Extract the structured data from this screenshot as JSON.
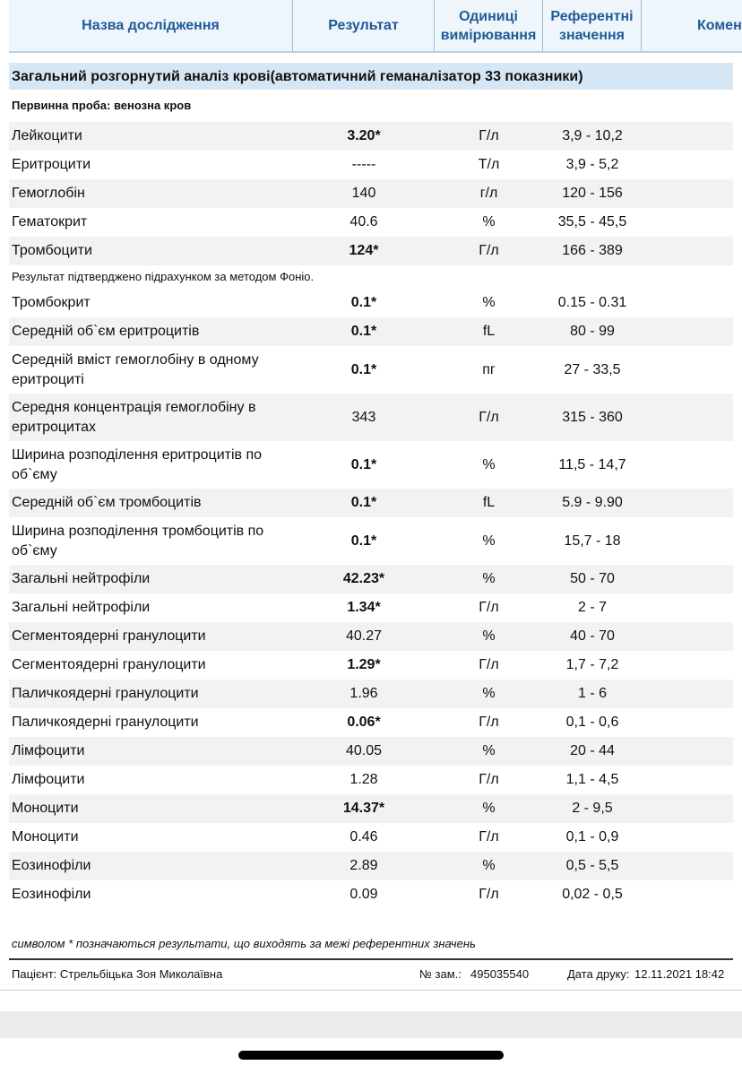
{
  "header": {
    "columns": [
      "Назва дослідження",
      "Результат",
      "Одиниці вимірювання",
      "Референтні значення",
      "Комен"
    ]
  },
  "section": {
    "title": "Загальний розгорнутий аналіз крові(автоматичний геманалізатор 33 показники)",
    "sample": "Первинна проба: венозна кров"
  },
  "table": {
    "rows": [
      {
        "name": "Лейкоцити",
        "result": "3.20*",
        "unit": "Г/л",
        "ref": "3,9 - 10,2"
      },
      {
        "name": "Еритроцити",
        "result": "-----",
        "unit": "Т/л",
        "ref": "3,9 - 5,2"
      },
      {
        "name": "Гемоглобін",
        "result": "140",
        "unit": "г/л",
        "ref": "120 - 156"
      },
      {
        "name": "Гематокрит",
        "result": "40.6",
        "unit": "%",
        "ref": "35,5 - 45,5"
      },
      {
        "name": "Тромбоцити",
        "result": "124*",
        "unit": "Г/л",
        "ref": "166 - 389"
      },
      {
        "note": "Результат підтверджено підрахунком за методом Фоніо."
      },
      {
        "name": "Тромбокрит",
        "result": "0.1*",
        "unit": "%",
        "ref": "0.15 - 0.31"
      },
      {
        "name": "Середній об`єм еритроцитів",
        "result": "0.1*",
        "unit": "fL",
        "ref": "80 - 99"
      },
      {
        "name": "Середній вміст гемоглобіну в одному еритроциті",
        "result": "0.1*",
        "unit": "пг",
        "ref": "27 - 33,5"
      },
      {
        "name": "Середня концентрація гемоглобіну в еритроцитах",
        "result": "343",
        "unit": "Г/л",
        "ref": "315 - 360"
      },
      {
        "name": "Ширина розподілення еритроцитів по об`єму",
        "result": "0.1*",
        "unit": "%",
        "ref": "11,5 - 14,7"
      },
      {
        "name": "Середній об`єм тромбоцитів",
        "result": "0.1*",
        "unit": "fL",
        "ref": "5.9 - 9.90"
      },
      {
        "name": "Ширина розподілення тромбоцитів по об`єму",
        "result": "0.1*",
        "unit": "%",
        "ref": "15,7 - 18"
      },
      {
        "name": "Загальні нейтрофіли",
        "result": "42.23*",
        "unit": "%",
        "ref": "50 - 70"
      },
      {
        "name": "Загальні нейтрофіли",
        "result": "1.34*",
        "unit": "Г/л",
        "ref": "2 - 7"
      },
      {
        "name": "Сегментоядерні гранулоцити",
        "result": "40.27",
        "unit": "%",
        "ref": "40 - 70"
      },
      {
        "name": "Сегментоядерні гранулоцити",
        "result": "1.29*",
        "unit": "Г/л",
        "ref": "1,7 - 7,2"
      },
      {
        "name": "Паличкоядерні гранулоцити",
        "result": "1.96",
        "unit": "%",
        "ref": "1 - 6"
      },
      {
        "name": "Паличкоядерні гранулоцити",
        "result": "0.06*",
        "unit": "Г/л",
        "ref": "0,1 - 0,6"
      },
      {
        "name": "Лімфоцити",
        "result": "40.05",
        "unit": "%",
        "ref": "20 - 44"
      },
      {
        "name": "Лімфоцити",
        "result": "1.28",
        "unit": "Г/л",
        "ref": "1,1 - 4,5"
      },
      {
        "name": "Моноцити",
        "result": "14.37*",
        "unit": "%",
        "ref": "2 - 9,5"
      },
      {
        "name": "Моноцити",
        "result": "0.46",
        "unit": "Г/л",
        "ref": "0,1 - 0,9"
      },
      {
        "name": "Еозинофіли",
        "result": "2.89",
        "unit": "%",
        "ref": "0,5 - 5,5"
      },
      {
        "name": "Еозинофіли",
        "result": "0.09",
        "unit": "Г/л",
        "ref": "0,02 - 0,5"
      }
    ]
  },
  "footnote": "символом * позначаються результати, що виходять за межі референтних значень",
  "footer": {
    "patient": "Пацієнт: Стрельбіцька Зоя Миколаївна",
    "order_label": "№ зам.:",
    "order": "495035540",
    "date_label": "Дата друку:",
    "date": "12.11.2021 18:42"
  }
}
